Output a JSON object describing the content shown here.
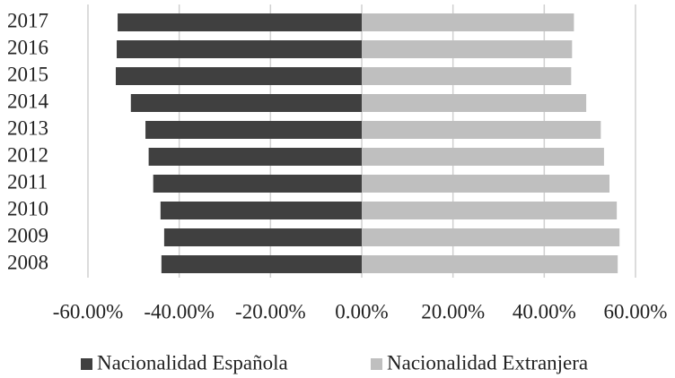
{
  "chart_data": {
    "type": "diverging_bar",
    "categories": [
      "2008",
      "2009",
      "2010",
      "2011",
      "2012",
      "2013",
      "2014",
      "2015",
      "2016",
      "2017"
    ],
    "series": [
      {
        "name": "Nacionalidad Española",
        "color": "#404040",
        "values": [
          -43.9,
          -43.3,
          -44.1,
          -45.7,
          -46.7,
          -47.4,
          -50.6,
          -53.9,
          -53.7,
          -53.5
        ]
      },
      {
        "name": "Nacionalidad Extranjera",
        "color": "#bfbfbf",
        "values": [
          56.1,
          56.5,
          55.9,
          54.3,
          53.1,
          52.4,
          49.2,
          45.9,
          46.1,
          46.5
        ]
      }
    ],
    "xlim": [
      -60,
      60
    ],
    "xticks": [
      {
        "value": -60,
        "label": "-60.00%"
      },
      {
        "value": -40,
        "label": "-40.00%"
      },
      {
        "value": -20,
        "label": "-20.00%"
      },
      {
        "value": 0,
        "label": "0.00%"
      },
      {
        "value": 20,
        "label": "20.00%"
      },
      {
        "value": 40,
        "label": "40.00%"
      },
      {
        "value": 60,
        "label": "60.00%"
      }
    ],
    "grid": true,
    "legend": "bottom"
  }
}
